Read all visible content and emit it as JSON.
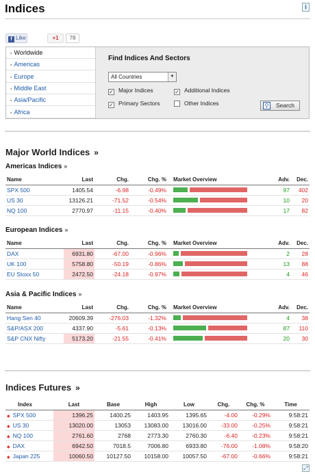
{
  "page": {
    "title": "Indices",
    "info_icon": "i"
  },
  "social": {
    "like_label": "Like",
    "fb_glyph": "f",
    "gplus_label": "+1",
    "gplus_count": "78"
  },
  "finder": {
    "regions": [
      {
        "label": "Worldwide",
        "active": true
      },
      {
        "label": "Americas",
        "active": false
      },
      {
        "label": "Europe",
        "active": false
      },
      {
        "label": "Middle East",
        "active": false
      },
      {
        "label": "Asia/Pacific",
        "active": false
      },
      {
        "label": "Africa",
        "active": false
      }
    ],
    "title": "Find Indices And Sectors",
    "country_value": "All Countries",
    "checkboxes": [
      {
        "label": "Major Indices",
        "checked": true
      },
      {
        "label": "Additional Indices",
        "checked": true
      },
      {
        "label": "Primary Sectors",
        "checked": true
      },
      {
        "label": "Other Indices",
        "checked": false
      }
    ],
    "search_label": "Search"
  },
  "major": {
    "title": "Major World Indices",
    "headers": [
      "Name",
      "Last",
      "Chg.",
      "Chg. %",
      "Market Overview",
      "Adv.",
      "Dec."
    ],
    "groups": [
      {
        "title": "Americas Indices",
        "rows": [
          {
            "name": "SPX 500",
            "last": "1405.54",
            "chg": "-6.98",
            "pct": "-0.49%",
            "adv": "97",
            "dec": "402",
            "adv_share": 0.19,
            "highlight": false
          },
          {
            "name": "US 30",
            "last": "13126.21",
            "chg": "-71.52",
            "pct": "-0.54%",
            "adv": "10",
            "dec": "20",
            "adv_share": 0.33,
            "highlight": false
          },
          {
            "name": "NQ 100",
            "last": "2770.97",
            "chg": "-11.15",
            "pct": "-0.40%",
            "adv": "17",
            "dec": "82",
            "adv_share": 0.17,
            "highlight": false
          }
        ]
      },
      {
        "title": "European Indices",
        "rows": [
          {
            "name": "DAX",
            "last": "6931.80",
            "chg": "-67.00",
            "pct": "-0.96%",
            "adv": "2",
            "dec": "28",
            "adv_share": 0.07,
            "highlight": true
          },
          {
            "name": "UK 100",
            "last": "5758.80",
            "chg": "-50.19",
            "pct": "-0.86%",
            "adv": "13",
            "dec": "88",
            "adv_share": 0.13,
            "highlight": true
          },
          {
            "name": "EU Stoxx 50",
            "last": "2472.50",
            "chg": "-24.18",
            "pct": "-0.97%",
            "adv": "4",
            "dec": "46",
            "adv_share": 0.08,
            "highlight": true
          }
        ]
      },
      {
        "title": "Asia & Pacific Indices",
        "rows": [
          {
            "name": "Hang Sen 40",
            "last": "20609.39",
            "chg": "-276.03",
            "pct": "-1.32%",
            "adv": "4",
            "dec": "38",
            "adv_share": 0.1,
            "highlight": false
          },
          {
            "name": "S&P/ASX 200",
            "last": "4337.90",
            "chg": "-5.61",
            "pct": "-0.13%",
            "adv": "87",
            "adv_share": 0.44,
            "dec": "110",
            "highlight": false
          },
          {
            "name": "S&P CNX Nifty",
            "last": "5173.20",
            "chg": "-21.55",
            "pct": "-0.41%",
            "adv": "20",
            "dec": "30",
            "adv_share": 0.4,
            "highlight": true
          }
        ]
      }
    ]
  },
  "futures": {
    "title": "Indices Futures",
    "headers": [
      "Index",
      "Last",
      "Base",
      "High",
      "Low",
      "Chg.",
      "Chg. %",
      "Time"
    ],
    "rows": [
      {
        "name": "SPX 500",
        "last": "1396.25",
        "base": "1400.25",
        "high": "1403.95",
        "low": "1395.65",
        "chg": "-4.00",
        "pct": "-0.29%",
        "time": "9:58:21"
      },
      {
        "name": "US 30",
        "last": "13020.00",
        "base": "13053",
        "high": "13083.00",
        "low": "13016.00",
        "chg": "-33.00",
        "pct": "-0.25%",
        "time": "9:58:21"
      },
      {
        "name": "NQ 100",
        "last": "2761.60",
        "base": "2768",
        "high": "2773.30",
        "low": "2760.30",
        "chg": "-6.40",
        "pct": "-0.23%",
        "time": "9:58:21"
      },
      {
        "name": "DAX",
        "last": "6942.50",
        "base": "7018.5",
        "high": "7006.80",
        "low": "6933.80",
        "chg": "-76.00",
        "pct": "-1.08%",
        "time": "9:58:20"
      },
      {
        "name": "Japan 225",
        "last": "10060.50",
        "base": "10127.50",
        "high": "10158.00",
        "low": "10057.50",
        "chg": "-67.00",
        "pct": "-0.66%",
        "time": "9:58:21"
      }
    ]
  },
  "raquo": "»",
  "colors": {
    "link": "#1d5aa8",
    "negative": "#dd2222",
    "positive": "#1a9a1a",
    "advance_bar": "#4caf50",
    "decline_bar": "#e06666",
    "highlight": "#fcd9d9"
  }
}
